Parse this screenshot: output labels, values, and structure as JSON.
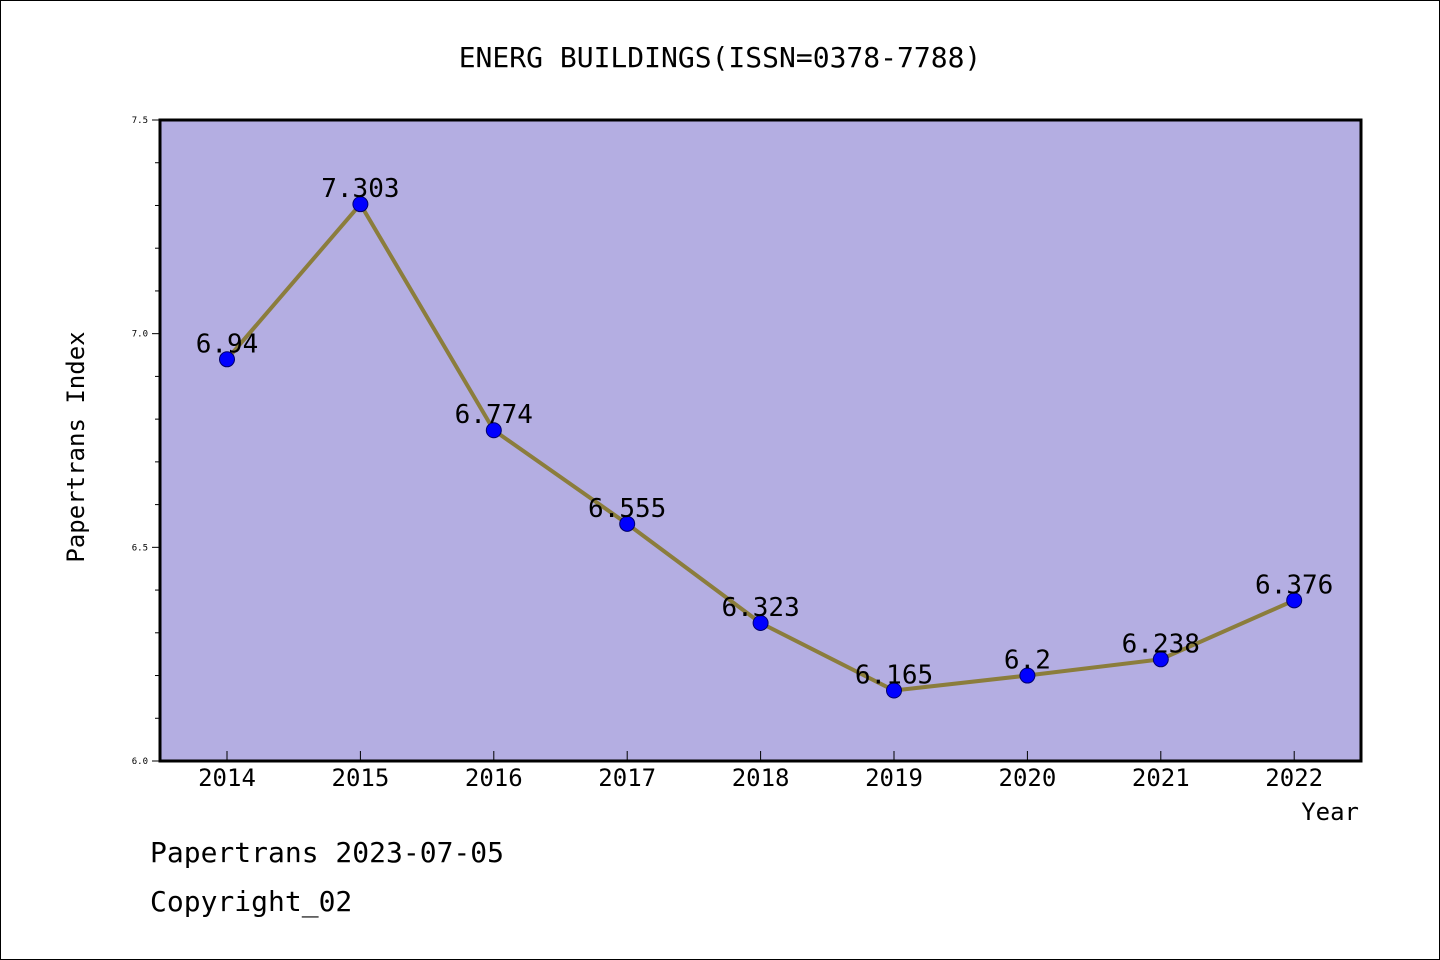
{
  "chart_data": {
    "type": "line",
    "title": "ENERG BUILDINGS(ISSN=0378-7788)",
    "xlabel": "Year",
    "ylabel": "Papertrans Index",
    "categories": [
      "2014",
      "2015",
      "2016",
      "2017",
      "2018",
      "2019",
      "2020",
      "2021",
      "2022"
    ],
    "series": [
      {
        "values": [
          6.94,
          7.303,
          6.774,
          6.555,
          6.323,
          6.165,
          6.2,
          6.238,
          6.376
        ],
        "labels": [
          "6.94",
          "7.303",
          "6.774",
          "6.555",
          "6.323",
          "6.165",
          "6.2",
          "6.238",
          "6.376"
        ]
      }
    ],
    "ylim": [
      6.0,
      7.5
    ],
    "yticks": [
      "6.0",
      "6.5",
      "7.0",
      "7.5"
    ],
    "grid": false,
    "colors": {
      "plot_background": "#b4aee2",
      "line": "#8b7d3c",
      "marker": "#0000ff"
    }
  },
  "footer": {
    "line1": "Papertrans 2023-07-05",
    "line2": "Copyright_02"
  }
}
